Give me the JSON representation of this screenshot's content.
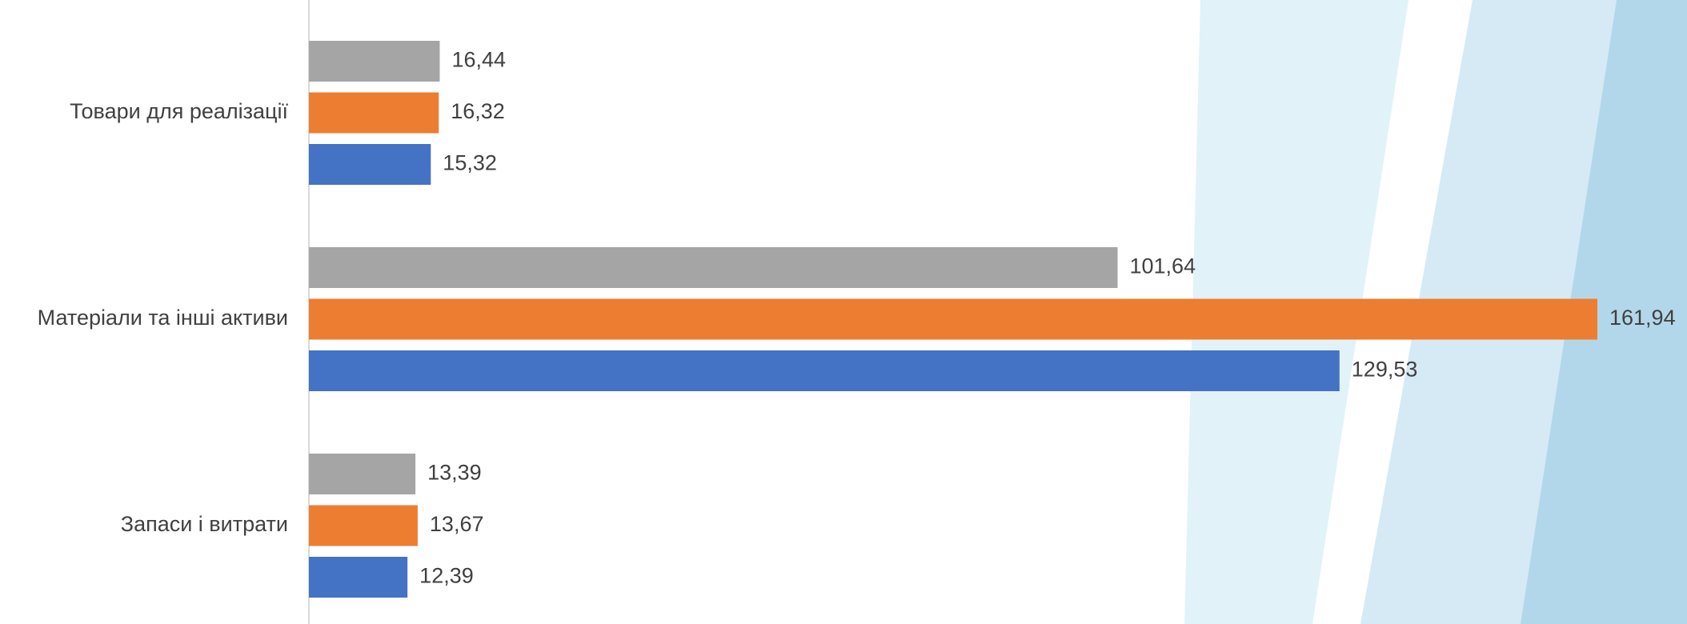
{
  "chart_data": {
    "type": "hbar",
    "categories": [
      "Товари для реалізації",
      "Матеріали та інші активи",
      "Запаси і витрати"
    ],
    "series": [
      {
        "color": "#a5a5a5",
        "values": [
          16.44,
          101.64,
          13.39
        ],
        "value_labels": [
          "16,44",
          "101,64",
          "13,39"
        ]
      },
      {
        "color": "#ed7d31",
        "values": [
          16.32,
          161.94,
          13.67
        ],
        "value_labels": [
          "16,32",
          "161,94",
          "13,67"
        ]
      },
      {
        "color": "#4472c4",
        "values": [
          15.32,
          129.53,
          12.39
        ],
        "value_labels": [
          "15,32",
          "129,53",
          "12,39"
        ]
      }
    ]
  }
}
